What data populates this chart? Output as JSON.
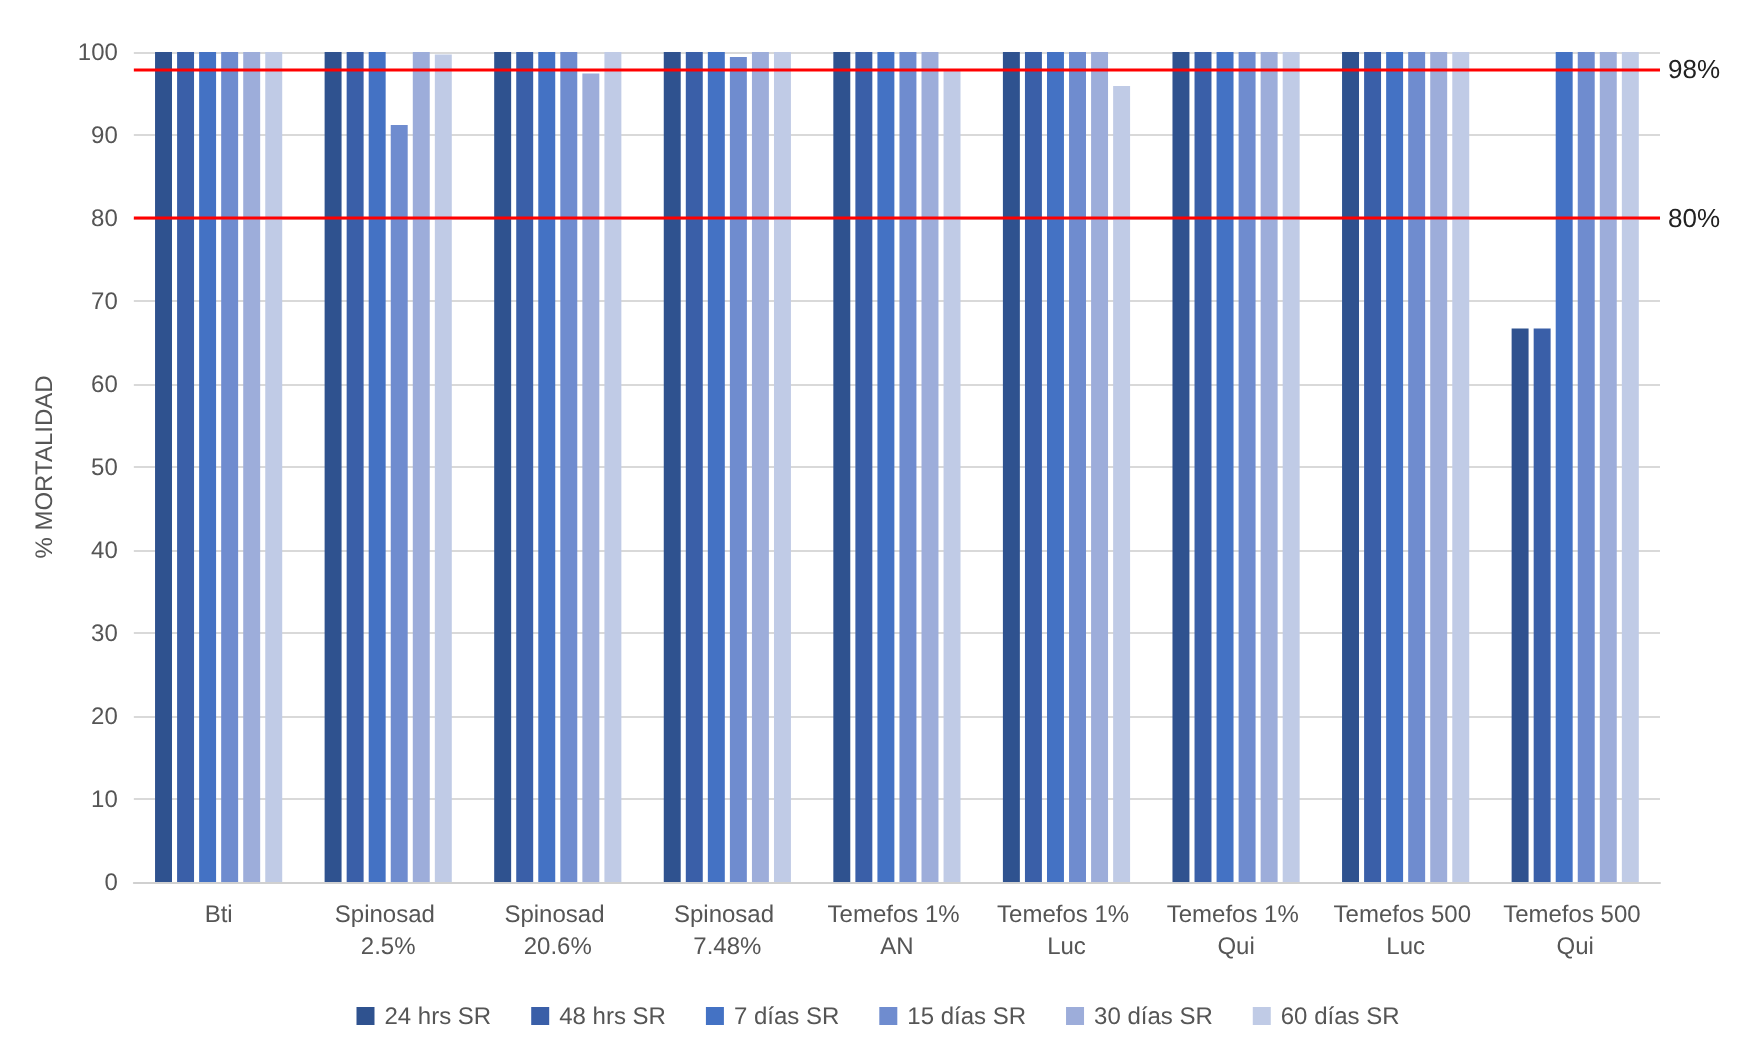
{
  "chart_data": {
    "type": "bar",
    "ylabel": "% MORTALIDAD",
    "categories": [
      "Bti",
      "Spinosad 2.5%",
      "Spinosad 20.6%",
      "Spinosad 7.48%",
      "Temefos 1% AN",
      "Temefos 1% Luc",
      "Temefos 1% Qui",
      "Temefos 500 Luc",
      "Temefos 500 Qui"
    ],
    "series": [
      {
        "name": "24 hrs SR",
        "color": "#2f528f",
        "values": [
          100,
          100,
          100,
          100,
          100,
          100,
          100,
          100,
          66.7
        ]
      },
      {
        "name": "48 hrs SR",
        "color": "#3a5fa8",
        "values": [
          100,
          100,
          100,
          100,
          100,
          100,
          100,
          100,
          66.7
        ]
      },
      {
        "name": "7 días SR",
        "color": "#4472c4",
        "values": [
          100,
          100,
          100,
          100,
          100,
          100,
          100,
          100,
          100
        ]
      },
      {
        "name": "15 días SR",
        "color": "#6f8ccf",
        "values": [
          100,
          91.2,
          100,
          99.4,
          100,
          100,
          100,
          100,
          100
        ]
      },
      {
        "name": "30 días SR",
        "color": "#9dadda",
        "values": [
          100,
          100,
          97.4,
          100,
          100,
          100,
          100,
          100,
          100
        ]
      },
      {
        "name": "60 días SR",
        "color": "#c0cbe6",
        "values": [
          100,
          99.7,
          100,
          100,
          97.7,
          95.9,
          100,
          100,
          100
        ]
      }
    ],
    "ylim": [
      0,
      100
    ],
    "yticks": [
      0,
      10,
      20,
      30,
      40,
      50,
      60,
      70,
      80,
      90,
      100
    ],
    "grid": "y",
    "legend": "bottom",
    "ref_lines": [
      {
        "axis": "y",
        "value": 98,
        "label": "98%",
        "color": "#ff0000"
      },
      {
        "axis": "y",
        "value": 80,
        "label": "80%",
        "color": "#ff0000"
      }
    ]
  }
}
